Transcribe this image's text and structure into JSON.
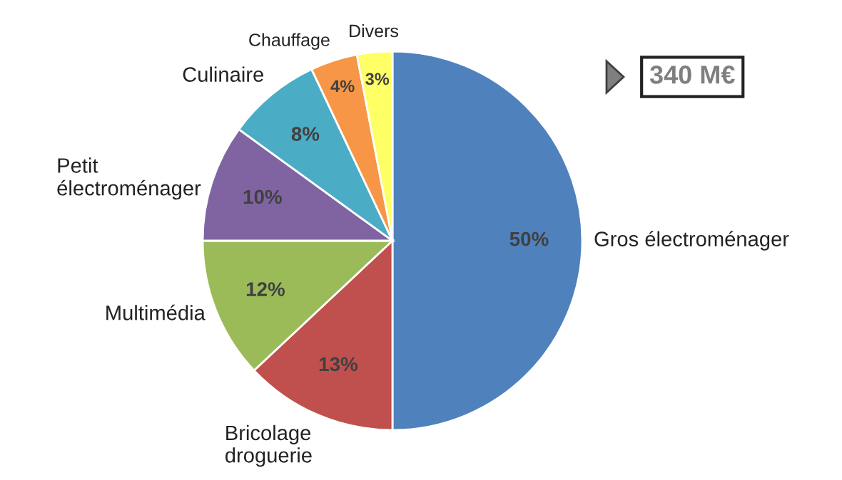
{
  "chart_data": {
    "type": "pie",
    "categories": [
      "Gros électroménager",
      "Bricolage\ndroguerie",
      "Multimédia",
      "Petit\nélectroménager",
      "Culinaire",
      "Chauffage",
      "Divers"
    ],
    "values": [
      50,
      13,
      12,
      10,
      8,
      4,
      3
    ],
    "value_labels": [
      "50%",
      "13%",
      "12%",
      "10%",
      "8%",
      "4%",
      "3%"
    ],
    "colors": [
      "#4f81bd",
      "#c0504d",
      "#9bbb59",
      "#8064a2",
      "#4bacc6",
      "#f79646",
      "#ffff66"
    ],
    "annotations": [
      "340 M€"
    ],
    "legend": false
  }
}
